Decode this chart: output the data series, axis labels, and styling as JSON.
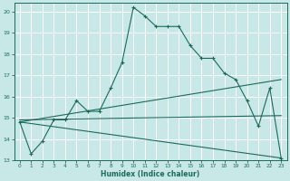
{
  "xlabel": "Humidex (Indice chaleur)",
  "bg_color": "#c8e8e8",
  "grid_color": "#ffffff",
  "line_color": "#1a6b5a",
  "xlim": [
    -0.5,
    23.5
  ],
  "ylim": [
    13,
    20.4
  ],
  "yticks": [
    13,
    14,
    15,
    16,
    17,
    18,
    19,
    20
  ],
  "xticks": [
    0,
    1,
    2,
    3,
    4,
    5,
    6,
    7,
    8,
    9,
    10,
    11,
    12,
    13,
    14,
    15,
    16,
    17,
    18,
    19,
    20,
    21,
    22,
    23
  ],
  "line1_x": [
    0,
    1,
    2,
    3,
    4,
    5,
    6,
    7,
    8,
    9,
    10,
    11,
    12,
    13,
    14,
    15,
    16,
    17,
    18,
    19,
    20,
    21,
    22,
    23
  ],
  "line1_y": [
    14.8,
    13.3,
    13.9,
    14.9,
    14.9,
    15.8,
    15.3,
    15.3,
    16.4,
    17.6,
    20.2,
    19.8,
    19.3,
    19.3,
    19.3,
    18.4,
    17.8,
    17.8,
    17.1,
    16.8,
    15.8,
    14.6,
    16.4,
    13.1
  ],
  "line2_x": [
    0,
    23
  ],
  "line2_y": [
    14.8,
    16.8
  ],
  "line3_x": [
    0,
    23
  ],
  "line3_y": [
    14.8,
    13.1
  ],
  "line4_x": [
    0,
    23
  ],
  "line4_y": [
    14.9,
    15.1
  ]
}
